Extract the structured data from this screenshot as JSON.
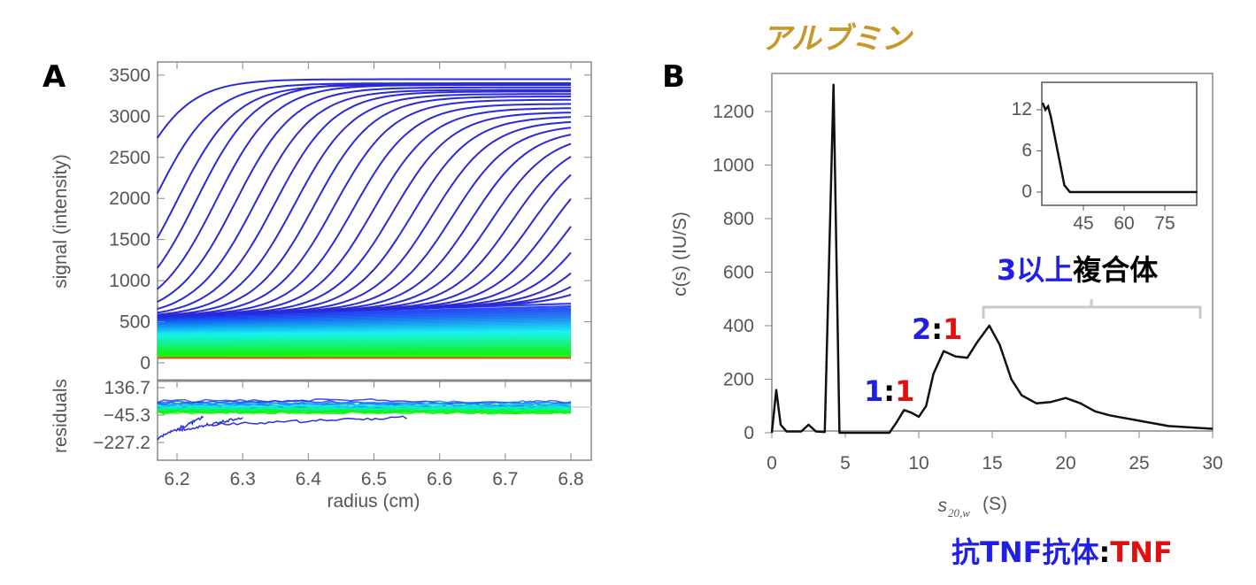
{
  "colors": {
    "blue": "#1f1fe8",
    "red": "#e01010",
    "black": "#000000",
    "gold": "#c9982a",
    "bracket": "#c8c8c8"
  },
  "chart_data": [
    {
      "panel_label": "A",
      "type": "line",
      "xlabel": "radius (cm)",
      "ylabel": "signal (intensity)",
      "residual_label": "residuals",
      "xlim": [
        6.13,
        6.86
      ],
      "ylim": [
        -80,
        3660
      ],
      "xticks": [
        "6.2",
        "6.3",
        "6.4",
        "6.5",
        "6.6",
        "6.7",
        "6.8"
      ],
      "yticks": [
        "0",
        "500",
        "1000",
        "1500",
        "2000",
        "2500",
        "3000",
        "3500"
      ],
      "residual_ticks": [
        "136.7",
        "-45.3",
        "-227.2"
      ],
      "residual_ylim": [
        -227.2,
        136.7
      ],
      "data_range_x": [
        6.17,
        6.8
      ],
      "boundary_scans": [
        {
          "midpoint": 6.12,
          "plateau": 3450
        },
        {
          "midpoint": 6.165,
          "plateau": 3400
        },
        {
          "midpoint": 6.2,
          "plateau": 3380
        },
        {
          "midpoint": 6.23,
          "plateau": 3400
        },
        {
          "midpoint": 6.26,
          "plateau": 3380
        },
        {
          "midpoint": 6.29,
          "plateau": 3350
        },
        {
          "midpoint": 6.32,
          "plateau": 3320
        },
        {
          "midpoint": 6.35,
          "plateau": 3300
        },
        {
          "midpoint": 6.38,
          "plateau": 3270
        },
        {
          "midpoint": 6.41,
          "plateau": 3240
        },
        {
          "midpoint": 6.44,
          "plateau": 3200
        },
        {
          "midpoint": 6.47,
          "plateau": 3150
        },
        {
          "midpoint": 6.5,
          "plateau": 3100
        },
        {
          "midpoint": 6.53,
          "plateau": 3050
        },
        {
          "midpoint": 6.56,
          "plateau": 3000
        },
        {
          "midpoint": 6.59,
          "plateau": 2950
        },
        {
          "midpoint": 6.62,
          "plateau": 2900
        },
        {
          "midpoint": 6.65,
          "plateau": 2850
        },
        {
          "midpoint": 6.68,
          "plateau": 2800
        },
        {
          "midpoint": 6.71,
          "plateau": 2750
        },
        {
          "midpoint": 6.74,
          "plateau": 2700
        },
        {
          "midpoint": 6.77,
          "plateau": 2650
        },
        {
          "midpoint": 6.8,
          "plateau": 2600
        },
        {
          "midpoint": 6.83,
          "plateau": 2550
        },
        {
          "midpoint": 6.86,
          "plateau": 2500
        },
        {
          "midpoint": 6.89,
          "plateau": 2450
        },
        {
          "midpoint": 6.92,
          "plateau": 2400
        }
      ],
      "baseline_band": {
        "count": 45,
        "y_left": [
          60,
          560
        ],
        "y_right": [
          60,
          720
        ]
      }
    },
    {
      "panel_label": "B",
      "type": "line",
      "xlabel_main": "s",
      "xlabel_sub": "20,w",
      "xlabel_unit": "(S)",
      "ylabel": "c(s) (IU/S)",
      "xlim": [
        0,
        30
      ],
      "ylim": [
        0,
        1300
      ],
      "xticks": [
        "0",
        "5",
        "10",
        "15",
        "20",
        "25",
        "30"
      ],
      "yticks": [
        "0",
        "200",
        "400",
        "600",
        "800",
        "1000",
        "1200"
      ],
      "x": [
        0,
        0.3,
        0.6,
        1,
        2,
        2.5,
        3,
        3.6,
        4.2,
        4.6,
        8,
        8.5,
        9,
        9.5,
        10,
        10.5,
        11,
        11.7,
        12.5,
        13.3,
        14,
        14.8,
        15.5,
        16.3,
        17,
        18,
        19,
        20,
        21,
        22,
        23,
        25,
        27,
        30
      ],
      "y": [
        0,
        160,
        30,
        5,
        5,
        30,
        5,
        3,
        1300,
        0,
        0,
        40,
        85,
        75,
        60,
        100,
        220,
        305,
        285,
        280,
        340,
        400,
        330,
        200,
        140,
        110,
        115,
        130,
        110,
        80,
        65,
        45,
        25,
        15
      ],
      "inset": {
        "xlim": [
          30,
          87
        ],
        "ylim": [
          -1,
          15
        ],
        "xticks": [
          "45",
          "60",
          "75"
        ],
        "yticks": [
          "0",
          "6",
          "12"
        ],
        "x": [
          30,
          31,
          32,
          33,
          35,
          38,
          40,
          87
        ],
        "y": [
          13,
          12,
          12.5,
          11,
          7,
          1,
          0,
          0
        ]
      },
      "annotations": {
        "albumin": "アルブミン",
        "one_to_one": {
          "left": "1",
          "sep": ":",
          "right": "1"
        },
        "two_to_one": {
          "left": "2",
          "sep": ":",
          "right": "1"
        },
        "complex": {
          "blue": "3以上",
          "black": "複合体"
        },
        "legend": {
          "blue": "抗TNF抗体",
          "sep": ":",
          "red": "TNF"
        }
      }
    }
  ]
}
